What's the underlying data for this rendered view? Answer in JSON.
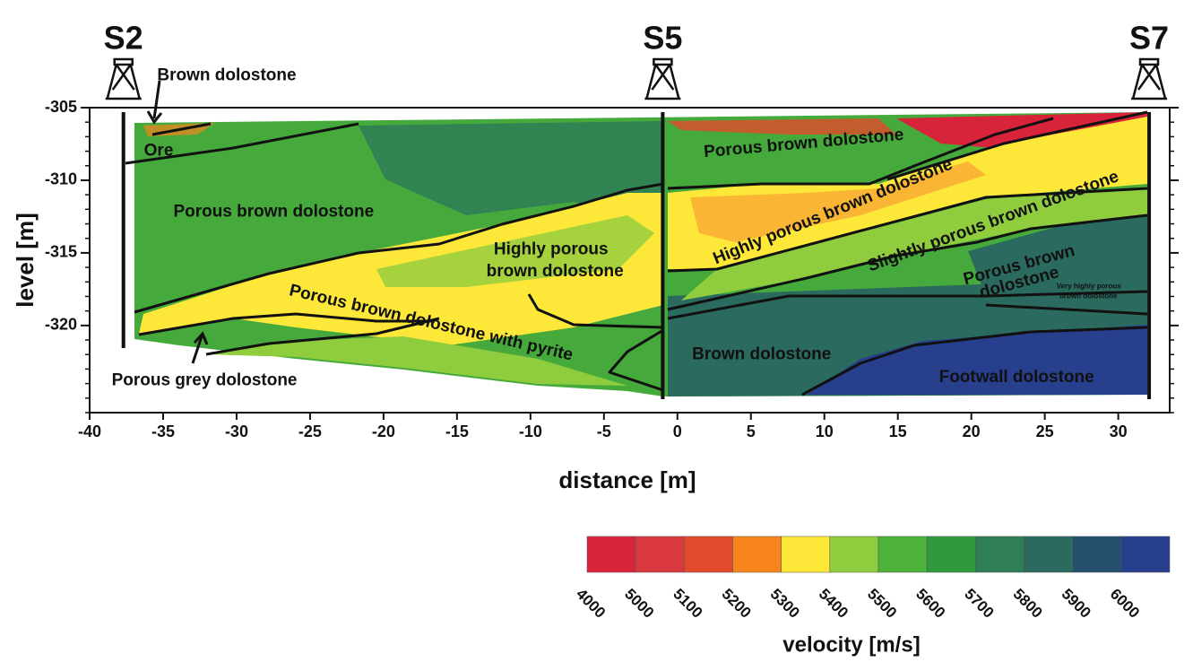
{
  "chart_data": {
    "type": "tomogram",
    "xlabel": "distance [m]",
    "ylabel": "level [m]",
    "xlim": [
      -40,
      33.5
    ],
    "ylim": [
      -326,
      -305
    ],
    "xticks": [
      -40,
      -35,
      -30,
      -25,
      -20,
      -15,
      -10,
      -5,
      0,
      5,
      10,
      15,
      20,
      25,
      30
    ],
    "yticks": [
      -305,
      -310,
      -315,
      -320
    ],
    "boreholes": [
      {
        "name": "S2",
        "x": -37.7
      },
      {
        "name": "S5",
        "x": -1
      },
      {
        "name": "S7",
        "x": 32.1
      }
    ],
    "annotations": [
      {
        "text": "Brown dolostone",
        "x": -35.4,
        "y": -302.8,
        "font_size": 19,
        "angle": 0
      },
      {
        "text": "Ore",
        "x": -36.3,
        "y": -308.0,
        "font_size": 19,
        "angle": 0
      },
      {
        "text": "Porous brown dolostone",
        "x": -34.3,
        "y": -312.2,
        "font_size": 19,
        "angle": 0
      },
      {
        "text": "Highly porous",
        "x": -12.5,
        "y": -314.8,
        "font_size": 19,
        "angle": 0
      },
      {
        "text": "brown dolostone",
        "x": -13.0,
        "y": -316.3,
        "font_size": 19,
        "angle": 0
      },
      {
        "text": "Porous brown dolostone with pyrite",
        "x": -26.4,
        "y": -317.6,
        "font_size": 19,
        "angle": 13
      },
      {
        "text": "Porous grey dolostone",
        "x": -38.5,
        "y": -323.8,
        "font_size": 19,
        "angle": 0
      },
      {
        "text": "Porous brown dolostone",
        "x": 1.8,
        "y": -308.1,
        "font_size": 19,
        "angle": -5
      },
      {
        "text": "Highly porous brown dolostone",
        "x": 2.5,
        "y": -315.5,
        "font_size": 19,
        "angle": -22
      },
      {
        "text": "Slightly porous brown dolostone",
        "x": 13.0,
        "y": -316.0,
        "font_size": 19,
        "angle": -20
      },
      {
        "text": "Porous brown",
        "x": 19.5,
        "y": -316.9,
        "font_size": 19,
        "angle": -15
      },
      {
        "text": "dolostone",
        "x": 20.6,
        "y": -317.8,
        "font_size": 19,
        "angle": -15
      },
      {
        "text": "Very highly porous",
        "x": 25.8,
        "y": -317.3,
        "font_size": 8,
        "angle": 0
      },
      {
        "text": "brown dolostone",
        "x": 26.0,
        "y": -318.0,
        "font_size": 8,
        "angle": 0
      },
      {
        "text": "Brown dolostone",
        "x": 1.0,
        "y": -322.0,
        "font_size": 19,
        "angle": 0
      },
      {
        "text": "Footwall dolostone",
        "x": 17.8,
        "y": -323.6,
        "font_size": 19,
        "angle": 0
      }
    ],
    "colorbar": {
      "title": "velocity [m/s]",
      "ticks": [
        4000,
        5000,
        5100,
        5200,
        5300,
        5400,
        5500,
        5600,
        5700,
        5800,
        5900,
        6000
      ],
      "colors": [
        "#d7243a",
        "#d9383f",
        "#e24a2c",
        "#f7841c",
        "#fde83a",
        "#8fcc3e",
        "#4db23a",
        "#2e9a3b",
        "#2f7e55",
        "#2b6a5e",
        "#24506e",
        "#283f8e"
      ]
    }
  }
}
